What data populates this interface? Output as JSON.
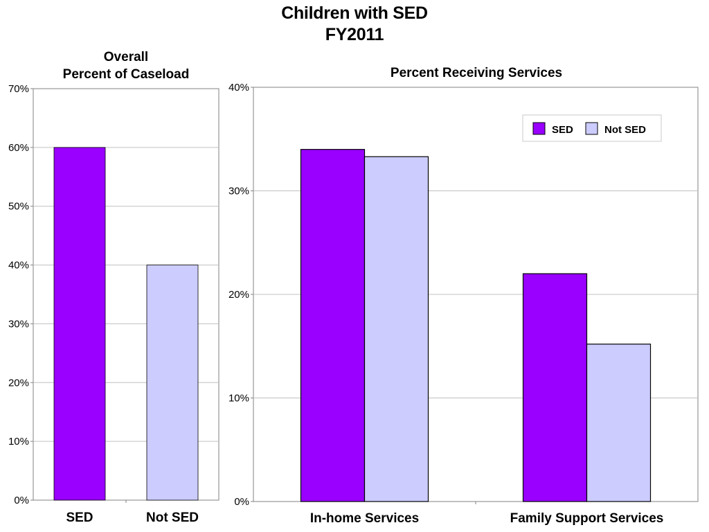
{
  "title": {
    "line1": "Children with SED",
    "line2": "FY2011"
  },
  "colors": {
    "sed": "#9900ff",
    "not_sed": "#ccccff",
    "grid": "#c0c0c0",
    "frame": "#808080"
  },
  "chart_data": [
    {
      "type": "bar",
      "title": "Overall Percent of Caseload",
      "title_lines": [
        "Overall",
        "Percent of Caseload"
      ],
      "categories": [
        "SED",
        "Not SED"
      ],
      "values": [
        60,
        40
      ],
      "ylim": [
        0,
        70
      ],
      "yticks": [
        0,
        10,
        20,
        30,
        40,
        50,
        60,
        70
      ],
      "ytick_labels": [
        "0%",
        "10%",
        "20%",
        "30%",
        "40%",
        "50%",
        "60%",
        "70%"
      ],
      "bar_colors": [
        "#9900ff",
        "#ccccff"
      ],
      "grid": true
    },
    {
      "type": "bar",
      "title": "Percent Receiving Services",
      "categories": [
        "In-home Services",
        "Family Support Services"
      ],
      "series": [
        {
          "name": "SED",
          "values": [
            34,
            22
          ],
          "color": "#9900ff"
        },
        {
          "name": "Not SED",
          "values": [
            33.3,
            15.2
          ],
          "color": "#ccccff"
        }
      ],
      "ylim": [
        0,
        40
      ],
      "yticks": [
        0,
        10,
        20,
        30,
        40
      ],
      "ytick_labels": [
        "0%",
        "10%",
        "20%",
        "30%",
        "40%"
      ],
      "legend": "top-right",
      "grid": true
    }
  ]
}
